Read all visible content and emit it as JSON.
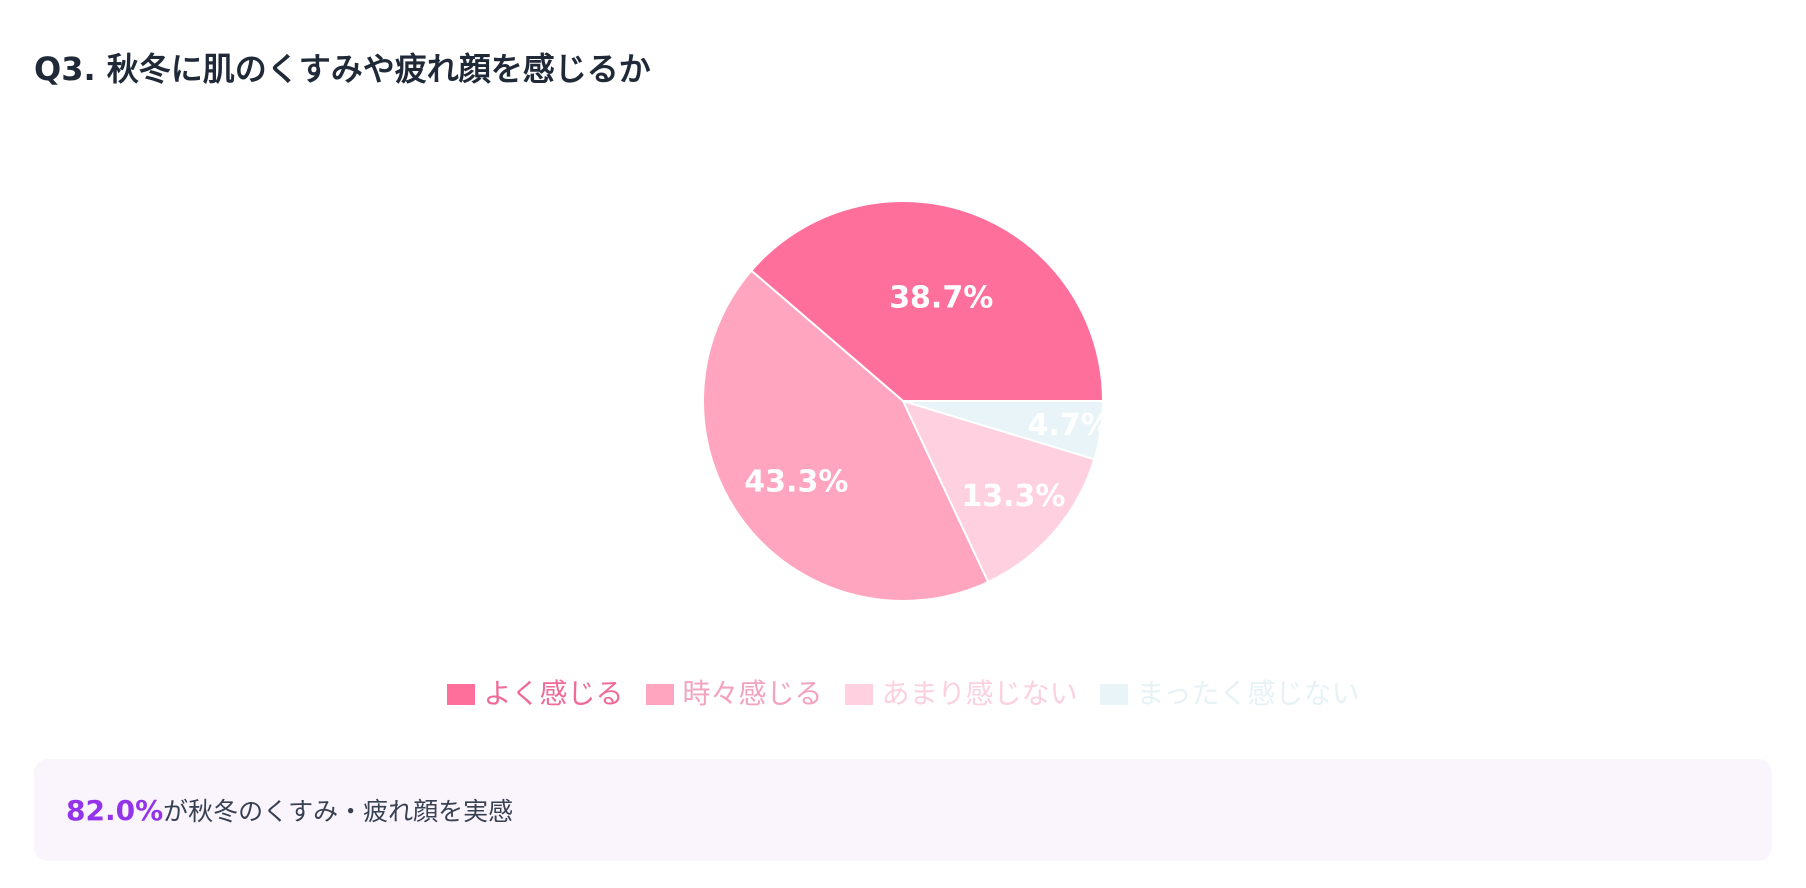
{
  "header": {
    "title": "Q3. 秋冬に肌のくすみや疲れ顔を感じるか"
  },
  "chart_data": {
    "type": "pie",
    "title": "Q3. 秋冬に肌のくすみや疲れ顔を感じるか",
    "labels": [
      "よく感じる",
      "時々感じる",
      "あまり感じない",
      "まったく感じない"
    ],
    "values": [
      38.7,
      43.3,
      13.3,
      4.7
    ],
    "value_labels": [
      "38.7%",
      "43.3%",
      "13.3%",
      "4.7%"
    ],
    "colors": [
      "#ff6f9c",
      "#ffa5c0",
      "#ffd1e0",
      "#e8f4f8"
    ],
    "legend_text_colors": [
      "#f06a96",
      "#f3a3bd",
      "#fbd0df",
      "#e6f2f6"
    ],
    "slice_label_color": "#ffffff",
    "slice_border_color": "#ffffff",
    "legend_position": "bottom"
  },
  "summary": {
    "highlight": "82.0%",
    "text": "が秋冬のくすみ・疲れ顔を実感",
    "highlight_color": "#9333ea"
  }
}
